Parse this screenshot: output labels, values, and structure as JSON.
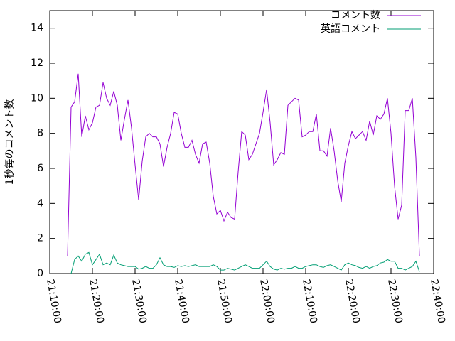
{
  "chart_data": {
    "type": "line",
    "ylabel": "1秒毎のコメント数",
    "xlim": [
      "21:10:00",
      "22:40:00"
    ],
    "xticks": [
      "21:10:00",
      "21:20:00",
      "21:30:00",
      "21:40:00",
      "21:50:00",
      "22:00:00",
      "22:10:00",
      "22:20:00",
      "22:30:00",
      "22:40:00"
    ],
    "ylim": [
      0,
      15
    ],
    "yticks": [
      0,
      2,
      4,
      6,
      8,
      10,
      12,
      14
    ],
    "legend": "top-right",
    "x": [
      "21:14:10",
      "21:15:00",
      "21:15:50",
      "21:16:40",
      "21:17:30",
      "21:18:20",
      "21:19:10",
      "21:20:00",
      "21:20:50",
      "21:21:40",
      "21:22:30",
      "21:23:20",
      "21:24:10",
      "21:25:00",
      "21:25:50",
      "21:26:40",
      "21:27:30",
      "21:28:20",
      "21:29:10",
      "21:30:00",
      "21:30:50",
      "21:31:40",
      "21:32:30",
      "21:33:20",
      "21:34:10",
      "21:35:00",
      "21:35:50",
      "21:36:40",
      "21:37:30",
      "21:38:20",
      "21:39:10",
      "21:40:00",
      "21:40:50",
      "21:41:40",
      "21:42:30",
      "21:43:20",
      "21:44:10",
      "21:45:00",
      "21:45:50",
      "21:46:40",
      "21:47:30",
      "21:48:20",
      "21:49:10",
      "21:50:00",
      "21:50:50",
      "21:51:40",
      "21:52:30",
      "21:53:20",
      "21:54:10",
      "21:55:00",
      "21:55:50",
      "21:56:40",
      "21:57:30",
      "21:58:20",
      "21:59:10",
      "22:00:00",
      "22:00:50",
      "22:01:40",
      "22:02:30",
      "22:03:20",
      "22:04:10",
      "22:05:00",
      "22:05:50",
      "22:06:40",
      "22:07:30",
      "22:08:20",
      "22:09:10",
      "22:10:00",
      "22:10:50",
      "22:11:40",
      "22:12:30",
      "22:13:20",
      "22:14:10",
      "22:15:00",
      "22:15:50",
      "22:16:40",
      "22:17:30",
      "22:18:20",
      "22:19:10",
      "22:20:00",
      "22:20:50",
      "22:21:40",
      "22:22:30",
      "22:23:20",
      "22:24:10",
      "22:25:00",
      "22:25:50",
      "22:26:40",
      "22:27:30",
      "22:28:20",
      "22:29:10",
      "22:30:00",
      "22:30:50",
      "22:31:40",
      "22:32:30",
      "22:33:20",
      "22:34:10",
      "22:35:00",
      "22:35:50",
      "22:36:40"
    ],
    "series": [
      {
        "name": "コメント数",
        "color": "#9400d3",
        "values": [
          1.0,
          9.5,
          9.8,
          11.4,
          7.8,
          9.0,
          8.2,
          8.6,
          9.5,
          9.6,
          10.9,
          10.0,
          9.6,
          10.4,
          9.6,
          7.6,
          8.8,
          9.9,
          8.3,
          6.2,
          4.2,
          6.4,
          7.8,
          8.0,
          7.8,
          7.8,
          7.4,
          6.1,
          7.2,
          8.0,
          9.2,
          9.1,
          8.0,
          7.2,
          7.2,
          7.6,
          6.8,
          6.3,
          7.4,
          7.5,
          6.3,
          4.4,
          3.4,
          3.6,
          3.0,
          3.5,
          3.2,
          3.1,
          5.8,
          8.1,
          7.9,
          6.5,
          6.8,
          7.4,
          8.0,
          9.2,
          10.5,
          8.6,
          6.2,
          6.5,
          6.9,
          6.8,
          9.6,
          9.8,
          10.0,
          9.9,
          7.8,
          7.9,
          8.1,
          8.1,
          9.1,
          7.0,
          7.0,
          6.7,
          8.3,
          7.0,
          5.3,
          4.1,
          6.3,
          7.3,
          8.1,
          7.7,
          7.9,
          8.1,
          7.6,
          8.7,
          7.9,
          9.0,
          8.8,
          9.1,
          10.0,
          8.0,
          5.0,
          3.1,
          3.9,
          9.3,
          9.3,
          10.0,
          6.6,
          1.0
        ]
      },
      {
        "name": "英語コメント",
        "color": "#009e73",
        "values": [
          null,
          0,
          0.8,
          1.0,
          0.7,
          1.1,
          1.2,
          0.5,
          0.8,
          1.1,
          0.5,
          0.6,
          0.5,
          1.05,
          0.6,
          0.5,
          0.45,
          0.4,
          0.4,
          0.4,
          0.25,
          0.3,
          0.4,
          0.3,
          0.3,
          0.5,
          0.9,
          0.5,
          0.4,
          0.4,
          0.35,
          0.45,
          0.4,
          0.45,
          0.4,
          0.45,
          0.5,
          0.4,
          0.4,
          0.4,
          0.4,
          0.5,
          0.4,
          0.2,
          0.2,
          0.3,
          0.25,
          0.2,
          0.3,
          0.4,
          0.5,
          0.4,
          0.3,
          0.3,
          0.3,
          0.5,
          0.7,
          0.4,
          0.25,
          0.2,
          0.3,
          0.25,
          0.3,
          0.3,
          0.4,
          0.3,
          0.3,
          0.4,
          0.45,
          0.5,
          0.5,
          0.4,
          0.35,
          0.45,
          0.5,
          0.4,
          0.3,
          0.2,
          0.5,
          0.6,
          0.5,
          0.45,
          0.35,
          0.3,
          0.4,
          0.3,
          0.4,
          0.45,
          0.6,
          0.65,
          0.8,
          0.7,
          0.7,
          0.3,
          0.3,
          0.2,
          0.3,
          0.4,
          0.7,
          0.1
        ]
      }
    ]
  }
}
